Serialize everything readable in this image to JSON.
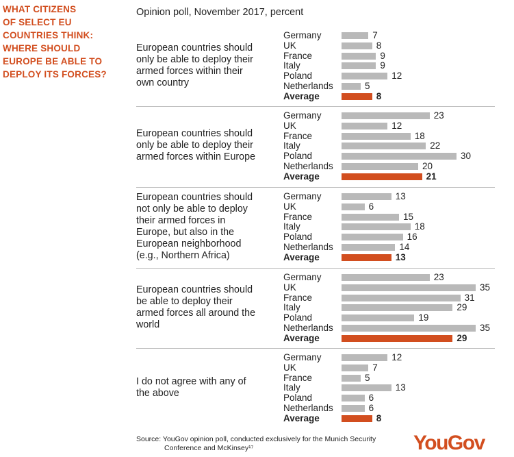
{
  "side_title": [
    "WHAT CITIZENS",
    "OF SELECT EU",
    "COUNTRIES THINK:",
    "WHERE SHOULD",
    "EUROPE BE ABLE TO",
    "DEPLOY ITS FORCES?"
  ],
  "subtitle": "Opinion poll, November 2017, percent",
  "source": [
    "Source: YouGov opinion poll, conducted exclusively for the Munich Security",
    "Conference and McKinsey¹⁷"
  ],
  "logo": "YouGov",
  "colors": {
    "accent": "#d24e1f",
    "bar": "#b9b9b9",
    "separator": "#bdbdbd"
  },
  "chart_data": {
    "type": "bar",
    "orientation": "horizontal",
    "unit": "percent",
    "categories": [
      "Germany",
      "UK",
      "France",
      "Italy",
      "Poland",
      "Netherlands",
      "Average"
    ],
    "highlight": "Average",
    "panels": [
      {
        "question": [
          "European countries should",
          "only be able to deploy their",
          "armed forces within their",
          "own country"
        ],
        "values": [
          7,
          8,
          9,
          9,
          12,
          5,
          8
        ]
      },
      {
        "question": [
          "European countries should",
          "only be able to deploy their",
          "armed forces within Europe"
        ],
        "values": [
          23,
          12,
          18,
          22,
          30,
          20,
          21
        ]
      },
      {
        "question": [
          "European countries should",
          "not only be able to deploy",
          "their armed forces in",
          "Europe, but also in the",
          "European neighborhood",
          "(e.g., Northern Africa)"
        ],
        "values": [
          13,
          6,
          15,
          18,
          16,
          14,
          13
        ]
      },
      {
        "question": [
          "European countries should",
          "be able to deploy their",
          "armed forces all around the",
          "world"
        ],
        "values": [
          23,
          35,
          31,
          29,
          19,
          35,
          29
        ]
      },
      {
        "question": [
          "I do not agree with any of",
          "the above"
        ],
        "values": [
          12,
          7,
          5,
          13,
          6,
          6,
          8
        ]
      }
    ]
  }
}
